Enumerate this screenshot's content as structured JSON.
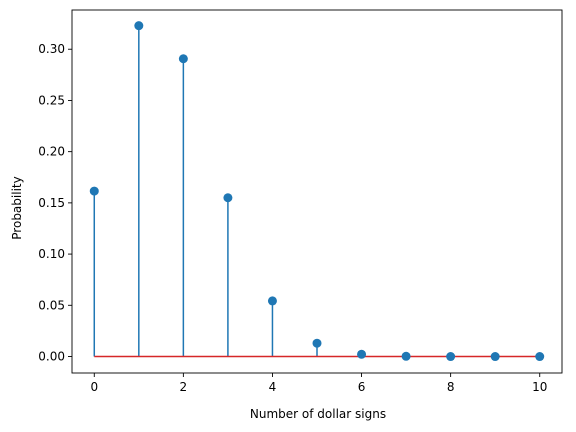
{
  "chart_data": {
    "type": "stem",
    "title": "",
    "xlabel": "Number of dollar signs",
    "ylabel": "Probability",
    "xlim": [
      -0.5,
      10.5
    ],
    "ylim": [
      -0.0161,
      0.3383
    ],
    "x_ticks": [
      0,
      2,
      4,
      6,
      8,
      10
    ],
    "x_tick_labels": [
      "0",
      "2",
      "4",
      "6",
      "8",
      "10"
    ],
    "y_ticks": [
      0.0,
      0.05,
      0.1,
      0.15,
      0.2,
      0.25,
      0.3
    ],
    "y_tick_labels": [
      "0.00",
      "0.05",
      "0.10",
      "0.15",
      "0.20",
      "0.25",
      "0.30"
    ],
    "grid": false,
    "legend": "none",
    "series": [
      {
        "x": [
          0,
          1,
          2,
          3,
          4,
          5,
          6,
          7,
          8,
          9,
          10
        ],
        "y": [
          0.1615,
          0.323,
          0.2907,
          0.155,
          0.0543,
          0.013,
          0.0022,
          0.0002,
          0.0,
          0.0,
          0.0
        ]
      }
    ],
    "colors": {
      "stem": "#1f77b4",
      "marker": "#1f77b4",
      "baseline": "#d62728",
      "axis": "#000000"
    }
  }
}
